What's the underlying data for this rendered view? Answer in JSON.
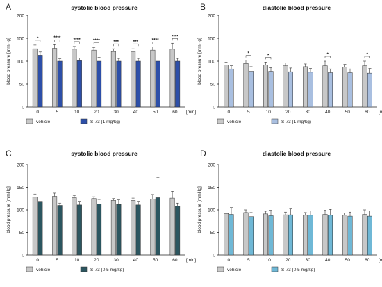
{
  "figure": {
    "colors": {
      "vehicle": "#c8c8c8",
      "panelA": "#2d4fa8",
      "panelB": "#a9bfe0",
      "panelC": "#2c5660",
      "panelD": "#6fb8d6"
    }
  },
  "chart_data": [
    {
      "panel": "A",
      "type": "bar",
      "title": "systolic blood pressure",
      "ylabel": "blood pressure [mmHg]",
      "xunit": "[min]",
      "categories": [
        "0",
        "5",
        "10",
        "20",
        "30",
        "40",
        "50",
        "60"
      ],
      "ylim": [
        0,
        200
      ],
      "yticks": [
        0,
        50,
        100,
        150,
        200
      ],
      "series": [
        {
          "name": "vehicle",
          "color": "#c8c8c8",
          "values": [
            127,
            128,
            126,
            124,
            121,
            121,
            124,
            126
          ],
          "errors": [
            8,
            8,
            6,
            6,
            6,
            6,
            7,
            13
          ]
        },
        {
          "name": "S-73 (1 mg/kg)",
          "color": "#2d4fa8",
          "values": [
            113,
            100,
            101,
            100,
            100,
            100,
            100,
            100
          ],
          "errors": [
            7,
            5,
            6,
            8,
            6,
            6,
            7,
            6
          ]
        }
      ],
      "significance": [
        "*",
        "****",
        "****",
        "****",
        "***",
        "***",
        "****",
        "****"
      ]
    },
    {
      "panel": "B",
      "type": "bar",
      "title": "diastolic blood pressure",
      "ylabel": "blood pressure [mmHg]",
      "xunit": "[min]",
      "categories": [
        "0",
        "5",
        "10",
        "20",
        "30",
        "40",
        "50",
        "60"
      ],
      "ylim": [
        0,
        200
      ],
      "yticks": [
        0,
        50,
        100,
        150,
        200
      ],
      "series": [
        {
          "name": "vehicle",
          "color": "#c8c8c8",
          "values": [
            92,
            95,
            92,
            90,
            88,
            90,
            87,
            90
          ],
          "errors": [
            6,
            7,
            6,
            6,
            6,
            10,
            6,
            10
          ]
        },
        {
          "name": "S-73 (1 mg/kg)",
          "color": "#a9bfe0",
          "values": [
            83,
            78,
            78,
            77,
            76,
            75,
            75,
            74
          ],
          "errors": [
            7,
            10,
            8,
            8,
            8,
            8,
            8,
            10
          ]
        }
      ],
      "significance": [
        "",
        "*",
        "*",
        "",
        "",
        "*",
        "",
        "*"
      ]
    },
    {
      "panel": "C",
      "type": "bar",
      "title": "systolic blood pressure",
      "ylabel": "blood pressure [mmHg]",
      "xunit": "[min]",
      "categories": [
        "0",
        "5",
        "10",
        "20",
        "30",
        "40",
        "50",
        "60"
      ],
      "ylim": [
        0,
        200
      ],
      "yticks": [
        0,
        50,
        100,
        150,
        200
      ],
      "series": [
        {
          "name": "vehicle",
          "color": "#c8c8c8",
          "values": [
            128,
            130,
            127,
            125,
            121,
            121,
            124,
            126
          ],
          "errors": [
            7,
            7,
            5,
            4,
            4,
            5,
            10,
            15
          ]
        },
        {
          "name": "S-73 (0.5 mg/kg)",
          "color": "#2c5660",
          "values": [
            119,
            110,
            111,
            113,
            112,
            111,
            127,
            108
          ],
          "errors": [
            0,
            5,
            8,
            10,
            10,
            8,
            45,
            7
          ]
        }
      ],
      "significance": [
        "",
        "",
        "",
        "",
        "",
        "",
        "",
        ""
      ]
    },
    {
      "panel": "D",
      "type": "bar",
      "title": "diastolic blood pressure",
      "ylabel": "blood pressure [mmHg]",
      "xunit": "[min]",
      "categories": [
        "0",
        "5",
        "10",
        "20",
        "30",
        "40",
        "50",
        "60"
      ],
      "ylim": [
        0,
        200
      ],
      "yticks": [
        0,
        50,
        100,
        150,
        200
      ],
      "series": [
        {
          "name": "vehicle",
          "color": "#c8c8c8",
          "values": [
            92,
            94,
            91,
            89,
            88,
            90,
            88,
            90
          ],
          "errors": [
            6,
            6,
            6,
            6,
            6,
            9,
            5,
            10
          ]
        },
        {
          "name": "S-73 (0.5 mg/kg)",
          "color": "#6fb8d6",
          "values": [
            90,
            85,
            87,
            89,
            88,
            88,
            86,
            86
          ],
          "errors": [
            15,
            9,
            12,
            13,
            10,
            13,
            9,
            12
          ]
        }
      ],
      "significance": [
        "",
        "",
        "",
        "",
        "",
        "",
        "",
        ""
      ]
    }
  ]
}
